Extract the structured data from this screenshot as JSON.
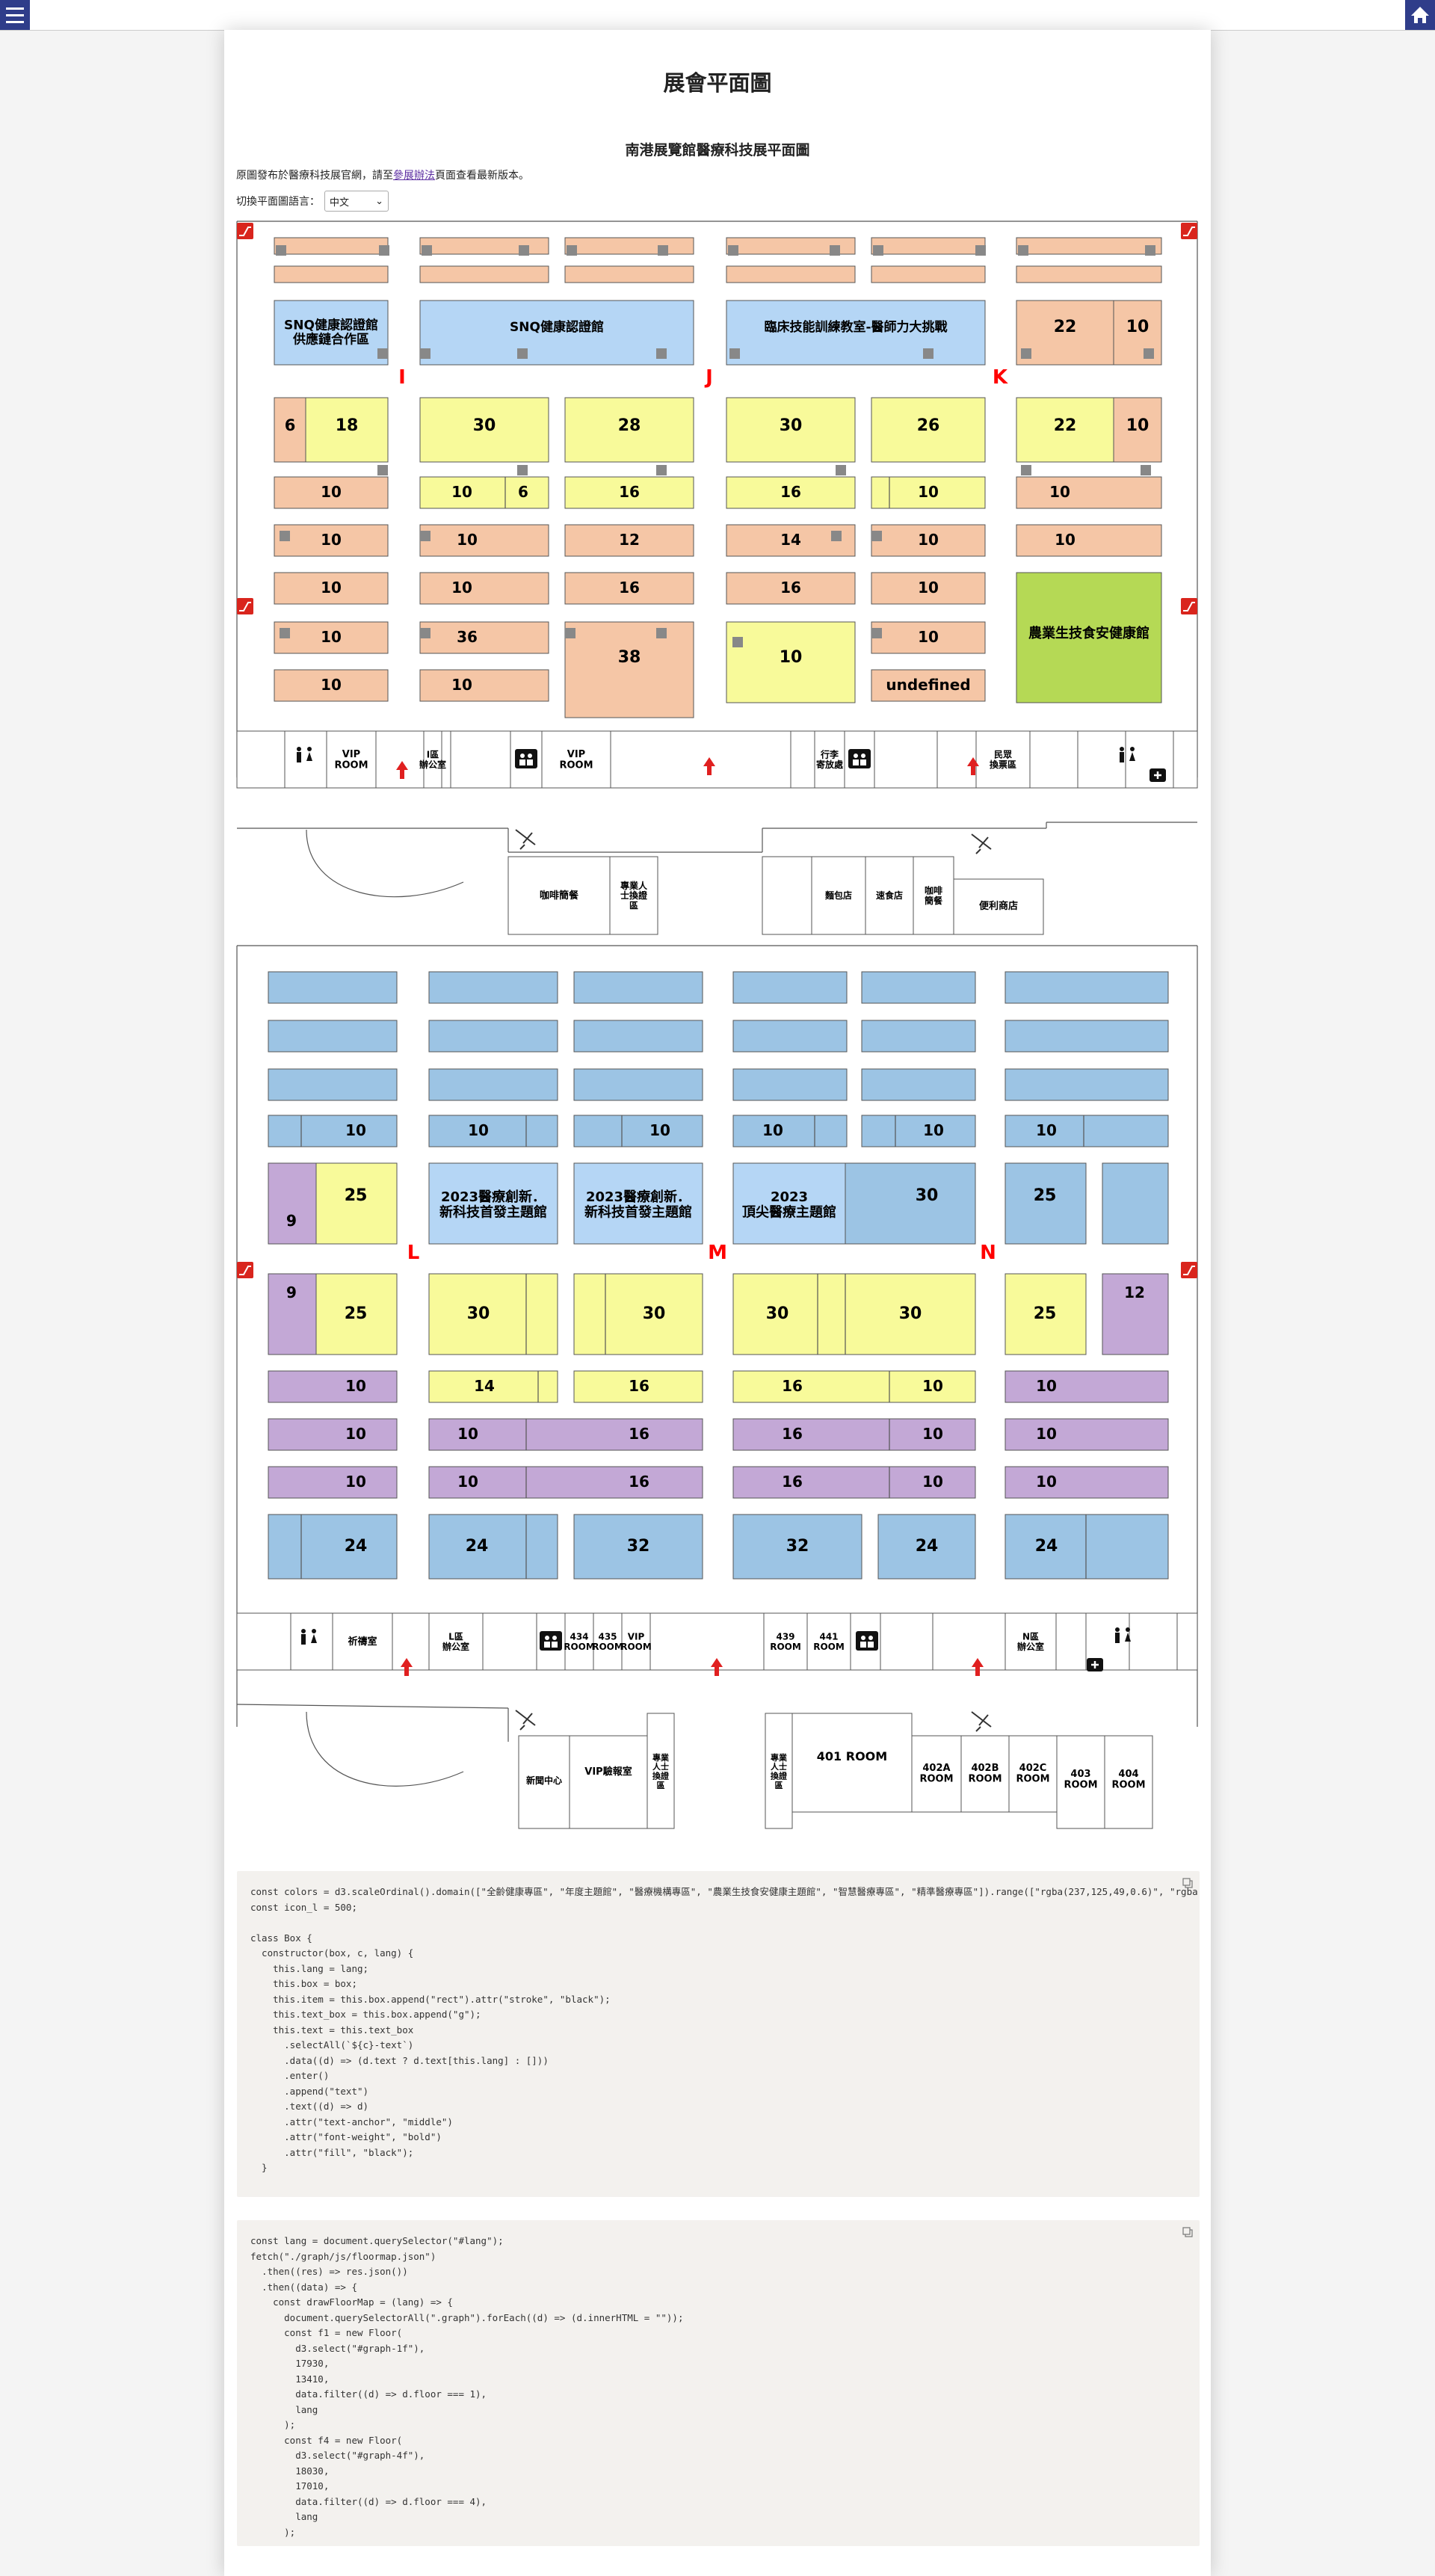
{
  "page_title": "展會平面圖",
  "plan_title": "南港展覽館醫療科技展平面圖",
  "notice": {
    "before": "原圖發布於醫療科技展官網，請至",
    "link": "參展辦法",
    "after": "頁面查看最新版本。"
  },
  "lang_switch": {
    "label": "切換平面圖語言：",
    "selected": "中文"
  },
  "colors": {
    "booth": "#f5c6a6",
    "blue": "#b5d6f5",
    "yellow": "#f8fa9a",
    "green": "#b5d955",
    "blue2": "#9cc4e4",
    "purple": "#c3a8d6",
    "zone_letter": "#ff0000",
    "arrow": "#e02020",
    "icon_red": "#d9251d",
    "nav": "#2f3d8a"
  },
  "floor_1": {
    "zones": [
      "I",
      "J",
      "K"
    ],
    "feature_labels": [
      "SNQ健康認證館\n供應鏈合作區",
      "SNQ健康認證館",
      "臨床技能訓練教室-醫師力大挑戰",
      "農業生技食安健康館"
    ],
    "booth_numbers": [
      "22",
      "10",
      "6",
      "18",
      "30",
      "28",
      "30",
      "26",
      "22",
      "10",
      "10",
      "10",
      "6",
      "16",
      "16",
      "10",
      "10",
      "10",
      "10",
      "12",
      "14",
      "10",
      "10",
      "10",
      "10",
      "16",
      "16",
      "10",
      "10",
      "10",
      "36",
      "38",
      "10",
      "10",
      "10",
      "10"
    ],
    "facilities": [
      "VIP\nROOM",
      "I區\n辦公室",
      "VIP\nROOM",
      "行李\n寄放處",
      "民眾\n換票區",
      "咖啡簡餐",
      "專業人\n士換證\n區",
      "麵包店",
      "速食店",
      "咖啡\n簡餐",
      "便利商店"
    ]
  },
  "floor_4": {
    "zones": [
      "L",
      "M",
      "N"
    ],
    "feature_labels": [
      "2023醫療創新．\n新科技首發主題館",
      "2023醫療創新．\n新科技首發主題館",
      "2023\n頂尖醫療主題館"
    ],
    "booth_numbers": [
      "10",
      "10",
      "10",
      "10",
      "10",
      "10",
      "25",
      "9",
      "30",
      "25",
      "9",
      "25",
      "30",
      "30",
      "30",
      "30",
      "25",
      "12",
      "10",
      "14",
      "16",
      "16",
      "10",
      "10",
      "10",
      "10",
      "16",
      "16",
      "10",
      "10",
      "10",
      "10",
      "16",
      "16",
      "10",
      "10",
      "24",
      "24",
      "32",
      "32",
      "24",
      "24"
    ],
    "facilities": [
      "祈禱室",
      "L區\n辦公室",
      "434\nROOM",
      "435\nROOM",
      "VIP\nROOM",
      "439\nROOM",
      "441\nROOM",
      "N區\n辦公室",
      "新聞中心",
      "VIP驗報室",
      "專業\n人士\n換證\n區",
      "專業\n人士\n換證\n區",
      "401 ROOM",
      "402A\nROOM",
      "402B\nROOM",
      "402C\nROOM",
      "403\nROOM",
      "404\nROOM"
    ]
  },
  "code_block_1": "const colors = d3.scaleOrdinal().domain([\"全齡健康專區\", \"年度主題館\", \"醫療機構專區\", \"農業生技食安健康主題館\", \"智慧醫療專區\", \"精準醫療專區\"]).range([\"rgba(237,125,49,0.6)\", \"rgba(153,204,255,1)\", \"rgba\nconst icon_l = 500;\n\nclass Box {\n  constructor(box, c, lang) {\n    this.lang = lang;\n    this.box = box;\n    this.item = this.box.append(\"rect\").attr(\"stroke\", \"black\");\n    this.text_box = this.box.append(\"g\");\n    this.text = this.text_box\n      .selectAll(`${c}-text`)\n      .data((d) => (d.text ? d.text[this.lang] : []))\n      .enter()\n      .append(\"text\")\n      .text((d) => d)\n      .attr(\"text-anchor\", \"middle\")\n      .attr(\"font-weight\", \"bold\")\n      .attr(\"fill\", \"black\");\n  }",
  "code_block_2": "const lang = document.querySelector(\"#lang\");\nfetch(\"./graph/js/floormap.json\")\n  .then((res) => res.json())\n  .then((data) => {\n    const drawFloorMap = (lang) => {\n      document.querySelectorAll(\".graph\").forEach((d) => (d.innerHTML = \"\"));\n      const f1 = new Floor(\n        d3.select(\"#graph-1f\"),\n        17930,\n        13410,\n        data.filter((d) => d.floor === 1),\n        lang\n      );\n      const f4 = new Floor(\n        d3.select(\"#graph-4f\"),\n        18030,\n        17010,\n        data.filter((d) => d.floor === 4),\n        lang\n      );"
}
